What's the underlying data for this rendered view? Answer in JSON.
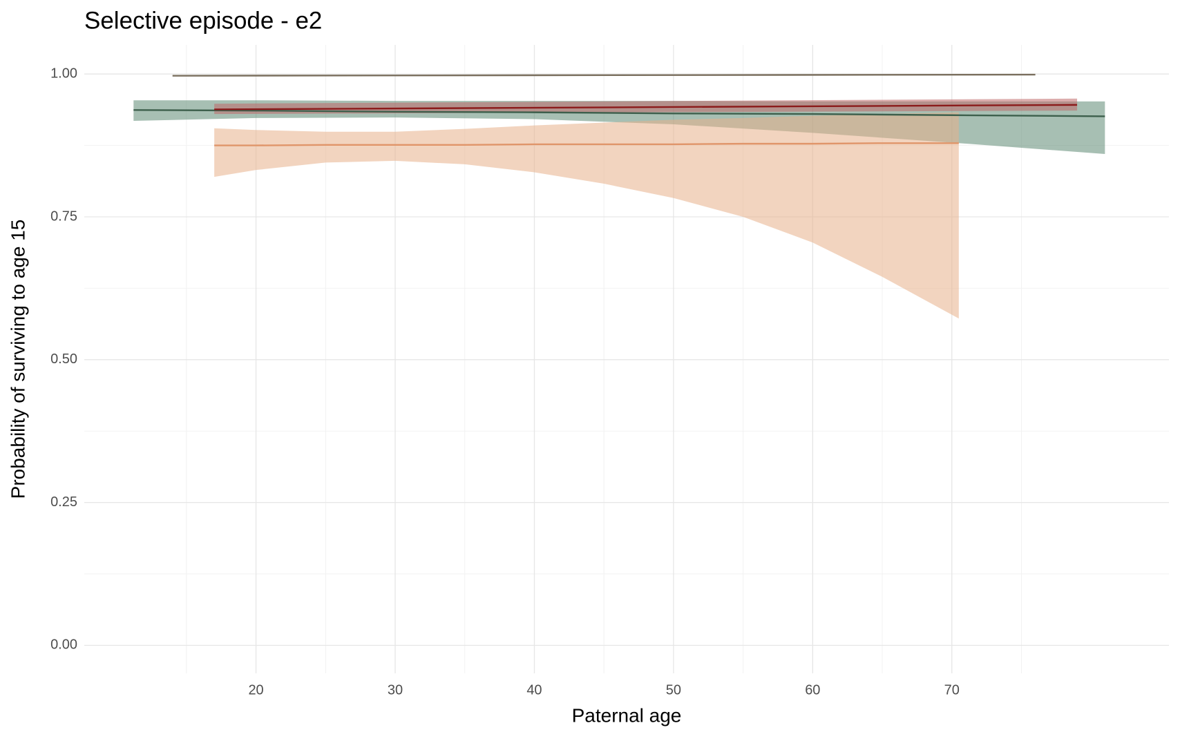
{
  "chart_data": {
    "type": "line",
    "title": "Selective episode - e2",
    "x_label": "Paternal age",
    "y_label": "Probability of surviving to age 15",
    "xlim": [
      7.66,
      85.6
    ],
    "ylim": [
      -0.049,
      1.051
    ],
    "xticks": [
      20,
      30,
      40,
      50,
      60,
      70
    ],
    "yticks": [
      {
        "value": 0,
        "label": "0.00"
      },
      {
        "value": 0.25,
        "label": "0.25"
      },
      {
        "value": 0.5,
        "label": "0.50"
      },
      {
        "value": 0.75,
        "label": "0.75"
      },
      {
        "value": 1,
        "label": "1.00"
      }
    ],
    "grid": true,
    "series": [
      {
        "color": "#3d5f4c",
        "band_color": "#5f8a74",
        "x": [
          11.2,
          20,
          30,
          40,
          50,
          60,
          70,
          81
        ],
        "values": [
          0.937,
          0.936,
          0.934,
          0.933,
          0.931,
          0.93,
          0.928,
          0.926
        ],
        "lower": [
          0.918,
          0.923,
          0.924,
          0.921,
          0.912,
          0.897,
          0.88,
          0.86
        ],
        "upper": [
          0.954,
          0.954,
          0.953,
          0.953,
          0.953,
          0.952,
          0.952,
          0.952
        ]
      },
      {
        "color": "#e0956a",
        "band_color": "#e8b08a",
        "x": [
          17,
          20,
          25,
          30,
          35,
          40,
          45,
          50,
          55,
          60,
          65,
          70.5
        ],
        "values": [
          0.875,
          0.875,
          0.876,
          0.876,
          0.876,
          0.877,
          0.877,
          0.877,
          0.878,
          0.878,
          0.879,
          0.879
        ],
        "lower": [
          0.82,
          0.832,
          0.845,
          0.848,
          0.842,
          0.828,
          0.808,
          0.783,
          0.75,
          0.705,
          0.645,
          0.572
        ],
        "upper": [
          0.905,
          0.902,
          0.899,
          0.899,
          0.904,
          0.91,
          0.915,
          0.92,
          0.923,
          0.927,
          0.93,
          0.933
        ]
      },
      {
        "color": "#8b1a1a",
        "band_color": "#c06a6a",
        "x": [
          17,
          79
        ],
        "values": [
          0.938,
          0.946
        ],
        "lower": [
          0.93,
          0.936
        ],
        "upper": [
          0.948,
          0.957
        ]
      },
      {
        "color": "#7a6f5e",
        "x": [
          14,
          76
        ],
        "values": [
          0.997,
          0.999
        ]
      }
    ]
  }
}
